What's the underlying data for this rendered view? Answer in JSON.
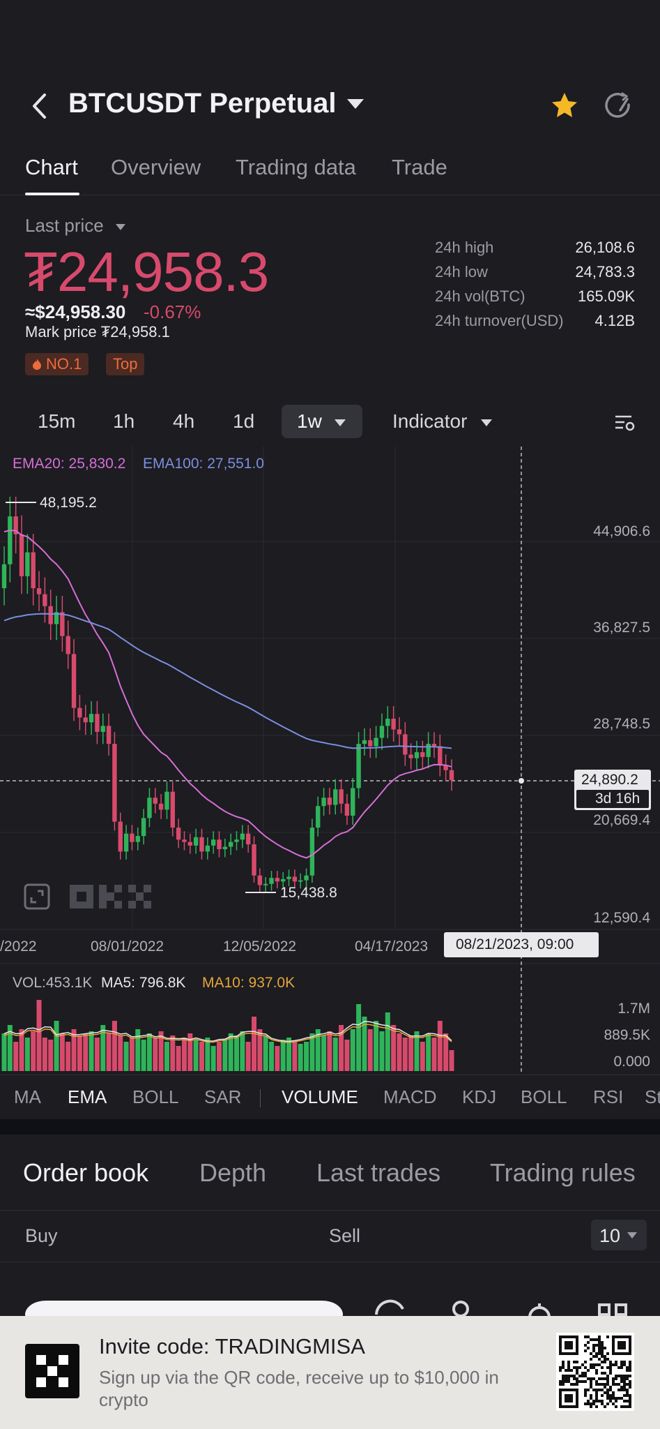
{
  "header": {
    "title": "BTCUSDT Perpetual"
  },
  "tabs": [
    "Chart",
    "Overview",
    "Trading data",
    "Trade"
  ],
  "price": {
    "last_price_label": "Last price",
    "value": "₮24,958.3",
    "usd": "≈$24,958.30",
    "change": "-0.67%",
    "mark_price": "Mark price ₮24,958.1",
    "badge_no1": "NO.1",
    "badge_top": "Top"
  },
  "stats": [
    {
      "label": "24h high",
      "value": "26,108.6"
    },
    {
      "label": "24h low",
      "value": "24,783.3"
    },
    {
      "label": "24h vol(BTC)",
      "value": "165.09K"
    },
    {
      "label": "24h turnover(USD)",
      "value": "4.12B"
    }
  ],
  "intervals": {
    "items": [
      "15m",
      "1h",
      "4h",
      "1d"
    ],
    "selected": "1w",
    "indicator": "Indicator"
  },
  "chart": {
    "ema20": "EMA20: 25,830.2",
    "ema100": "EMA100: 27,551.0",
    "high_label": "48,195.2",
    "low_label": "15,438.8",
    "y_ticks": [
      "44,906.6",
      "36,827.5",
      "28,748.5",
      "20,669.4",
      "12,590.4"
    ],
    "x_ticks": [
      "/2022",
      "08/01/2022",
      "12/05/2022",
      "04/17/2023"
    ],
    "crosshair_price": "24,890.2",
    "crosshair_countdown": "3d 16h",
    "crosshair_date": "08/21/2023, 09:00",
    "vol": "VOL:453.1K",
    "ma5": "MA5: 796.8K",
    "ma10": "MA10: 937.0K",
    "vol_ticks": [
      "1.7M",
      "889.5K",
      "0.000"
    ],
    "colors": {
      "up": "#2fb45a",
      "down": "#d84a6c",
      "ema20": "#d66fd6",
      "ema100": "#7b8fdd",
      "ma10": "#e6a53a"
    }
  },
  "indicators": {
    "main": [
      "MA",
      "EMA",
      "BOLL",
      "SAR"
    ],
    "sub": [
      "VOLUME",
      "MACD",
      "KDJ",
      "BOLL",
      "RSI",
      "St"
    ]
  },
  "orderbook": {
    "tabs": [
      "Order book",
      "Depth",
      "Last trades",
      "Trading rules"
    ],
    "buy": "Buy",
    "sell": "Sell",
    "depth_value": "10"
  },
  "invite": {
    "title": "Invite code: TRADINGMISA",
    "subtitle": "Sign up via the QR code, receive up to $10,000 in crypto"
  }
}
